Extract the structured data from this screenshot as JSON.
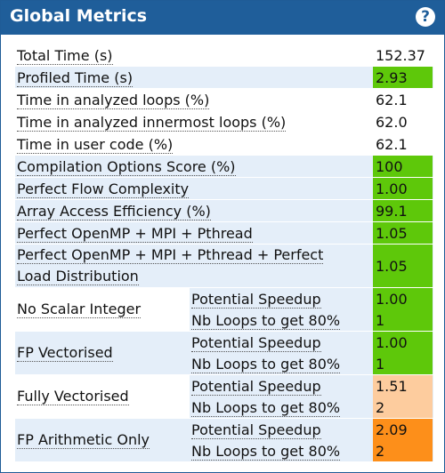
{
  "header": {
    "title": "Global Metrics",
    "help_icon": "question-icon",
    "help_glyph": "?"
  },
  "colors": {
    "header_bg": "#1f5e9a",
    "row_shade": "#e4eef9",
    "good": "#5ec80a",
    "warn": "#fdcc9e",
    "bad": "#fd8f1a"
  },
  "metrics": {
    "total_time": {
      "label": "Total Time (s)",
      "value": "152.37"
    },
    "profiled_time": {
      "label": "Profiled Time (s)",
      "value": "2.93"
    },
    "time_loops": {
      "label": "Time in analyzed loops (%)",
      "value": "62.1"
    },
    "time_innermost": {
      "label": "Time in analyzed innermost loops (%)",
      "value": "62.0"
    },
    "time_user": {
      "label": "Time in user code (%)",
      "value": "62.1"
    },
    "compilation": {
      "label": "Compilation Options Score (%)",
      "value": "100"
    },
    "flow": {
      "label": "Perfect Flow Complexity",
      "value": "1.00"
    },
    "array_access": {
      "label": "Array Access Efficiency (%)",
      "value": "99.1"
    },
    "openmp": {
      "label": "Perfect OpenMP + MPI + Pthread",
      "value": "1.05"
    },
    "openmp_load_1": {
      "label": "Perfect OpenMP + MPI + Pthread + Perfect",
      "value": "1.05"
    },
    "openmp_load_2": {
      "label": "Load Distribution"
    }
  },
  "groups": {
    "no_scalar": {
      "name": "No Scalar Integer",
      "speedup_label": "Potential Speedup",
      "speedup": "1.00",
      "loops_label": "Nb Loops to get 80%",
      "loops": "1"
    },
    "fp_vect": {
      "name": "FP Vectorised",
      "speedup_label": "Potential Speedup",
      "speedup": "1.00",
      "loops_label": "Nb Loops to get 80%",
      "loops": "1"
    },
    "fully_vect": {
      "name": "Fully Vectorised",
      "speedup_label": "Potential Speedup",
      "speedup": "1.51",
      "loops_label": "Nb Loops to get 80%",
      "loops": "2"
    },
    "fp_arith": {
      "name": "FP Arithmetic Only",
      "speedup_label": "Potential Speedup",
      "speedup": "2.09",
      "loops_label": "Nb Loops to get 80%",
      "loops": "2"
    }
  }
}
